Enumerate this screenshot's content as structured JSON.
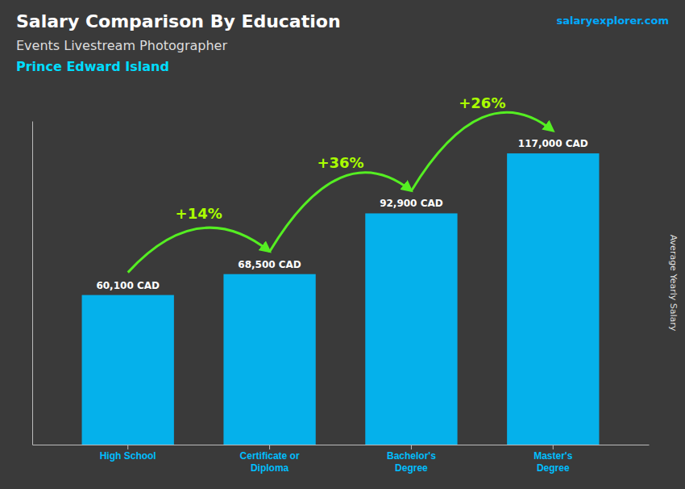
{
  "chart_data": {
    "type": "bar",
    "title": "Salary Comparison By Education",
    "subtitle": "Events Livestream Photographer",
    "location": "Prince Edward Island",
    "source": "salaryexplorer.com",
    "ylabel": "Average Yearly Salary",
    "categories": [
      "High School",
      "Certificate or\nDiploma",
      "Bachelor's\nDegree",
      "Master's\nDegree"
    ],
    "values": [
      60100,
      68500,
      92900,
      117000
    ],
    "value_labels": [
      "60,100 CAD",
      "68,500 CAD",
      "92,900 CAD",
      "117,000 CAD"
    ],
    "annotations": [
      "+14%",
      "+36%",
      "+26%"
    ],
    "color": "#00BFFF",
    "ylim": [
      0,
      130000
    ],
    "data_labels": true,
    "tick_labels": "x",
    "grid": false
  }
}
